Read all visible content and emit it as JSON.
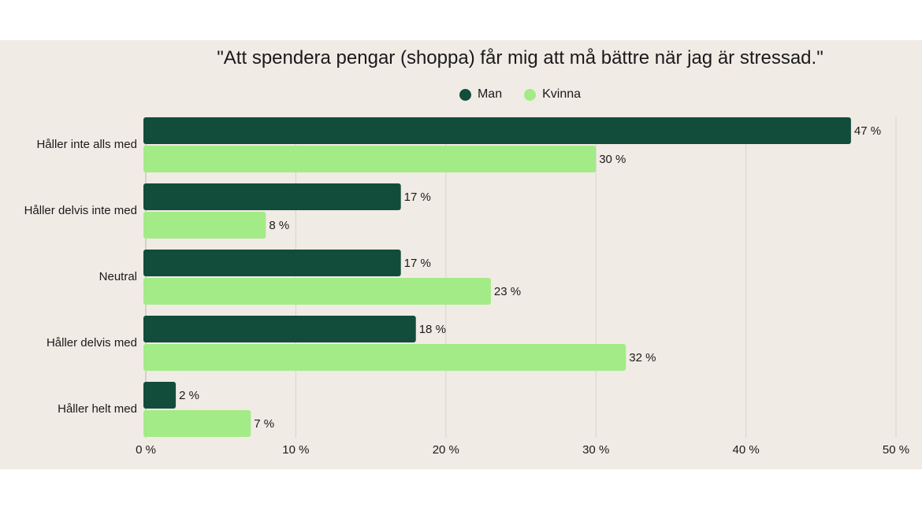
{
  "colors": {
    "background": "#f1ebe5",
    "man": "#124d3b",
    "kvinna": "#a3eb86",
    "grid": "#d9d3cd"
  },
  "chart_data": {
    "type": "bar",
    "orientation": "horizontal",
    "title": "\"Att spendera pengar (shoppa) får mig att må bättre när jag är stressad.\"",
    "categories": [
      "Håller inte alls med",
      "Håller delvis inte med",
      "Neutral",
      "Håller delvis med",
      "Håller helt med"
    ],
    "series": [
      {
        "name": "Man",
        "values": [
          47,
          17,
          17,
          18,
          2
        ],
        "labels": [
          "47 %",
          "17 %",
          "17 %",
          "18 %",
          "2 %"
        ]
      },
      {
        "name": "Kvinna",
        "values": [
          30,
          8,
          23,
          32,
          7
        ],
        "labels": [
          "30 %",
          "8 %",
          "23 %",
          "32 %",
          "7 %"
        ]
      }
    ],
    "xlim": [
      0,
      50
    ],
    "xticks": [
      0,
      10,
      20,
      30,
      40,
      50
    ],
    "xtick_labels": [
      "0 %",
      "10 %",
      "20 %",
      "30 %",
      "40 %",
      "50 %"
    ],
    "grid": "vertical",
    "legend": "top-center"
  }
}
